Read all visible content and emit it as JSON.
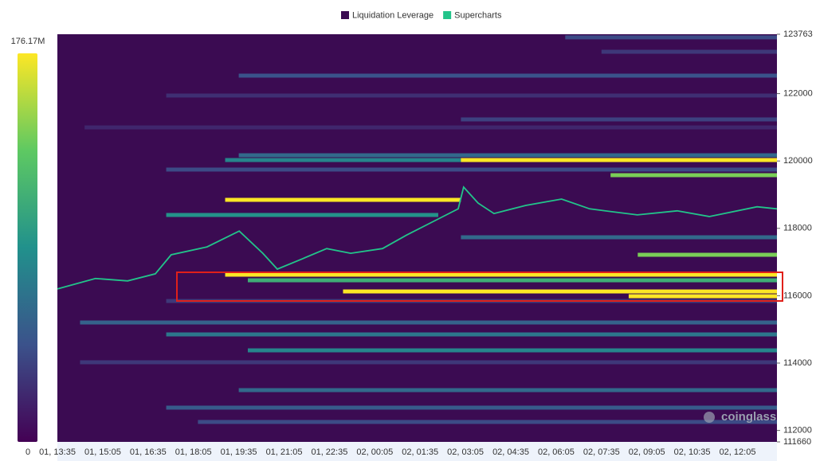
{
  "chart_data": {
    "type": "heatmap",
    "watermark": "coinglass",
    "colorbar": {
      "lim": [
        {
          "value": 0,
          "label": "0"
        },
        {
          "value": 176.17,
          "label": "176.17M"
        }
      ]
    },
    "ylim": [
      111660,
      123763
    ],
    "yticks": [
      111660,
      112000,
      114000,
      116000,
      118000,
      120000,
      122000,
      123763
    ],
    "categories": [
      "01, 13:35",
      "01, 15:05",
      "01, 16:35",
      "01, 18:05",
      "01, 19:35",
      "01, 21:05",
      "01, 22:35",
      "02, 00:05",
      "02, 01:35",
      "02, 03:05",
      "02, 04:35",
      "02, 06:05",
      "02, 07:35",
      "02, 09:05",
      "02, 10:35",
      "02, 12:05"
    ],
    "series": [
      {
        "name": "Liquidation Leverage",
        "color": "#3b0b52",
        "bands": [
          {
            "price": 123670,
            "start": 11.2,
            "end": 15.87,
            "value": 40
          },
          {
            "price": 123243,
            "start": 12.0,
            "end": 15.87,
            "value": 30
          },
          {
            "price": 122534,
            "start": 4.0,
            "end": 15.87,
            "value": 45
          },
          {
            "price": 121943,
            "start": 2.4,
            "end": 15.87,
            "value": 25
          },
          {
            "price": 121234,
            "start": 8.9,
            "end": 15.87,
            "value": 35
          },
          {
            "price": 120997,
            "start": 0.6,
            "end": 15.87,
            "value": 20
          },
          {
            "price": 120170,
            "start": 4.0,
            "end": 15.87,
            "value": 60
          },
          {
            "price": 120028,
            "start": 3.7,
            "end": 15.87,
            "value": 80
          },
          {
            "price": 120028,
            "start": 8.9,
            "end": 15.87,
            "value": 176
          },
          {
            "price": 119745,
            "start": 2.4,
            "end": 15.87,
            "value": 40
          },
          {
            "price": 119579,
            "start": 12.2,
            "end": 15.87,
            "value": 140
          },
          {
            "price": 118846,
            "start": 3.7,
            "end": 8.9,
            "value": 176
          },
          {
            "price": 118397,
            "start": 2.4,
            "end": 8.4,
            "value": 90
          },
          {
            "price": 117735,
            "start": 8.9,
            "end": 15.87,
            "value": 60
          },
          {
            "price": 117215,
            "start": 12.8,
            "end": 15.87,
            "value": 140
          },
          {
            "price": 116624,
            "start": 3.7,
            "end": 15.87,
            "value": 176
          },
          {
            "price": 116458,
            "start": 4.2,
            "end": 15.87,
            "value": 110
          },
          {
            "price": 116127,
            "start": 6.3,
            "end": 15.87,
            "value": 176
          },
          {
            "price": 115985,
            "start": 12.6,
            "end": 15.87,
            "value": 176
          },
          {
            "price": 115843,
            "start": 2.4,
            "end": 15.87,
            "value": 30
          },
          {
            "price": 115205,
            "start": 0.5,
            "end": 15.87,
            "value": 55
          },
          {
            "price": 114851,
            "start": 2.4,
            "end": 15.87,
            "value": 70
          },
          {
            "price": 114378,
            "start": 4.2,
            "end": 15.87,
            "value": 80
          },
          {
            "price": 114024,
            "start": 0.5,
            "end": 15.87,
            "value": 30
          },
          {
            "price": 113197,
            "start": 4.0,
            "end": 15.87,
            "value": 60
          },
          {
            "price": 112677,
            "start": 2.4,
            "end": 15.87,
            "value": 50
          },
          {
            "price": 112252,
            "start": 3.1,
            "end": 15.87,
            "value": 40
          }
        ]
      },
      {
        "name": "Supercharts",
        "color": "#22c48a",
        "x": [
          0,
          0.84,
          1.55,
          2.16,
          2.51,
          3.3,
          4.01,
          4.53,
          4.85,
          5.41,
          5.94,
          6.47,
          7.17,
          7.7,
          8.4,
          8.84,
          8.96,
          9.28,
          9.63,
          10.33,
          11.12,
          11.74,
          12.79,
          13.67,
          14.38,
          15.43,
          15.87
        ],
        "values": [
          116200,
          116510,
          116440,
          116650,
          117215,
          117450,
          117920,
          117260,
          116790,
          117100,
          117400,
          117260,
          117400,
          117800,
          118280,
          118580,
          119225,
          118750,
          118440,
          118680,
          118870,
          118580,
          118400,
          118520,
          118350,
          118640,
          118580
        ]
      }
    ]
  }
}
